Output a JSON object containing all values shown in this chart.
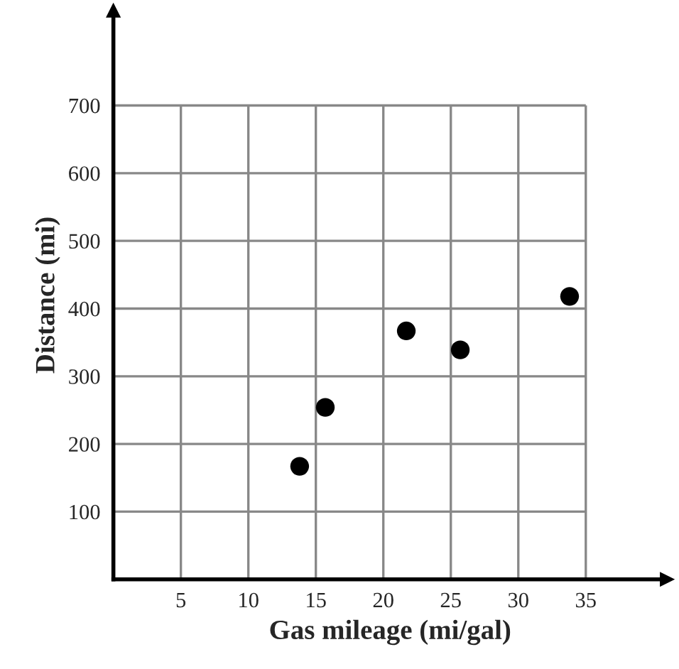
{
  "chart_data": {
    "type": "scatter",
    "xlabel": "Gas mileage (mi/gal)",
    "ylabel": "Distance (mi)",
    "x": [
      13.8,
      15.7,
      21.7,
      25.7,
      33.8
    ],
    "series": [
      {
        "color": "#000000",
        "values": [
          167,
          254,
          367,
          339,
          418
        ]
      }
    ],
    "xlim": [
      0,
      41
    ],
    "ylim": [
      0,
      840
    ],
    "xticks": [
      5,
      10,
      15,
      20,
      25,
      30,
      35
    ],
    "yticks": [
      100,
      200,
      300,
      400,
      500,
      600,
      700
    ],
    "grid": true,
    "marker": "circle"
  }
}
